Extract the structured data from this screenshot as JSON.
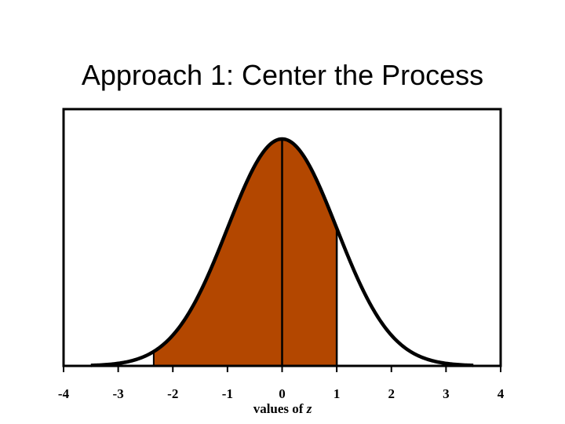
{
  "slide": {
    "title": "Approach 1: Center the Process"
  },
  "chart_data": {
    "type": "area",
    "curve": "standard-normal-density",
    "xlabel_text": "values of ",
    "xlabel_var": "z",
    "xlim": [
      -4,
      4
    ],
    "x_ticks": [
      -4,
      -3,
      -2,
      -1,
      0,
      1,
      2,
      3,
      4
    ],
    "x_tick_labels": [
      "-4",
      "-3",
      "-2",
      "-1",
      "0",
      "1",
      "2",
      "3",
      "4"
    ],
    "shaded_region": [
      -2.35,
      1.0
    ],
    "center_line": 0,
    "fill_color": "#b34700",
    "line_color": "#000000",
    "grid": false
  }
}
